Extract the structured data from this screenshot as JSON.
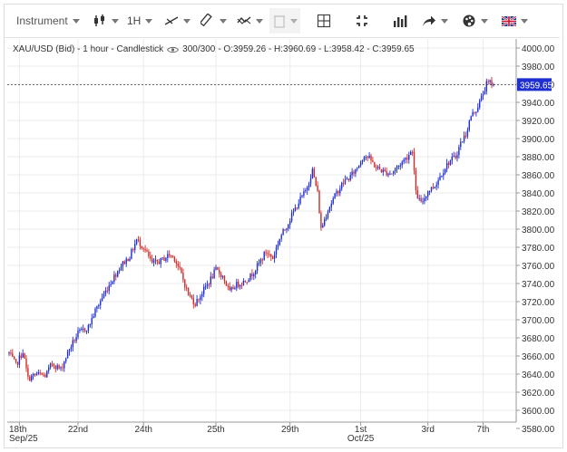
{
  "toolbar": {
    "instrument_label": "Instrument",
    "interval_label": "1H",
    "icons": [
      "candlestick-icon",
      "line-draw-icon",
      "ruler-icon",
      "compare-icon",
      "trash-icon",
      "crosshair-icon",
      "fullscreen-icon",
      "volume-bars-icon",
      "share-arrow-icon",
      "theme-palette-icon",
      "language-flag-icon"
    ]
  },
  "legend": {
    "title": "XAU/USD (Bid) - 1 hour - Candlestick",
    "bar_count": "300/300",
    "ohlc": "- O:3959.26 - H:3960.69 - L:3958.42 - C:3959.65"
  },
  "colors": {
    "up": "#1f2fd0",
    "down": "#d02a2a",
    "price_tag": "#1f2fd0",
    "grid": "#ebebeb"
  },
  "chart_data": {
    "type": "candlestick",
    "title": "XAU/USD (Bid) - 1 hour - Candlestick",
    "ylim": [
      3580,
      4010
    ],
    "y_ticks": [
      "4000.00",
      "3980.00",
      "3960.00",
      "3940.00",
      "3920.00",
      "3900.00",
      "3880.00",
      "3860.00",
      "3840.00",
      "3820.00",
      "3800.00",
      "3780.00",
      "3760.00",
      "3740.00",
      "3720.00",
      "3700.00",
      "3680.00",
      "3660.00",
      "3640.00",
      "3620.00",
      "3600.00",
      "3580.00"
    ],
    "x_ticks": [
      {
        "label": "18th",
        "sublabel": "Sep/25",
        "index": 6
      },
      {
        "label": "22nd",
        "sublabel": "",
        "index": 40
      },
      {
        "label": "24th",
        "sublabel": "",
        "index": 78
      },
      {
        "label": "25th",
        "sublabel": "",
        "index": 120
      },
      {
        "label": "29th",
        "sublabel": "",
        "index": 163
      },
      {
        "label": "1st",
        "sublabel": "Oct/25",
        "index": 204
      },
      {
        "label": "3rd",
        "sublabel": "",
        "index": 243
      },
      {
        "label": "7th",
        "sublabel": "",
        "index": 275
      }
    ],
    "last_price": "3959.65",
    "last_close": 3959.65,
    "bar_count": 300,
    "anchors": [
      [
        0,
        3663
      ],
      [
        4,
        3650
      ],
      [
        8,
        3665
      ],
      [
        11,
        3635
      ],
      [
        16,
        3640
      ],
      [
        21,
        3638
      ],
      [
        25,
        3652
      ],
      [
        30,
        3645
      ],
      [
        35,
        3668
      ],
      [
        40,
        3685
      ],
      [
        46,
        3692
      ],
      [
        50,
        3710
      ],
      [
        55,
        3728
      ],
      [
        60,
        3745
      ],
      [
        65,
        3760
      ],
      [
        70,
        3770
      ],
      [
        74,
        3788
      ],
      [
        78,
        3780
      ],
      [
        83,
        3762
      ],
      [
        88,
        3765
      ],
      [
        93,
        3772
      ],
      [
        96,
        3768
      ],
      [
        100,
        3750
      ],
      [
        104,
        3728
      ],
      [
        108,
        3718
      ],
      [
        112,
        3730
      ],
      [
        116,
        3742
      ],
      [
        120,
        3755
      ],
      [
        124,
        3748
      ],
      [
        128,
        3730
      ],
      [
        131,
        3738
      ],
      [
        136,
        3742
      ],
      [
        140,
        3748
      ],
      [
        145,
        3762
      ],
      [
        149,
        3775
      ],
      [
        153,
        3768
      ],
      [
        157,
        3790
      ],
      [
        160,
        3800
      ],
      [
        164,
        3815
      ],
      [
        168,
        3830
      ],
      [
        172,
        3842
      ],
      [
        176,
        3865
      ],
      [
        179,
        3840
      ],
      [
        181,
        3800
      ],
      [
        185,
        3822
      ],
      [
        190,
        3840
      ],
      [
        194,
        3852
      ],
      [
        198,
        3858
      ],
      [
        202,
        3868
      ],
      [
        206,
        3882
      ],
      [
        209,
        3878
      ],
      [
        213,
        3868
      ],
      [
        218,
        3863
      ],
      [
        222,
        3862
      ],
      [
        227,
        3872
      ],
      [
        231,
        3880
      ],
      [
        234,
        3888
      ],
      [
        236,
        3840
      ],
      [
        239,
        3828
      ],
      [
        243,
        3842
      ],
      [
        247,
        3848
      ],
      [
        251,
        3862
      ],
      [
        255,
        3874
      ],
      [
        259,
        3880
      ],
      [
        262,
        3895
      ],
      [
        265,
        3905
      ],
      [
        268,
        3925
      ],
      [
        271,
        3932
      ],
      [
        274,
        3945
      ],
      [
        277,
        3960
      ],
      [
        279,
        3962
      ],
      [
        281,
        3959.65
      ]
    ]
  }
}
